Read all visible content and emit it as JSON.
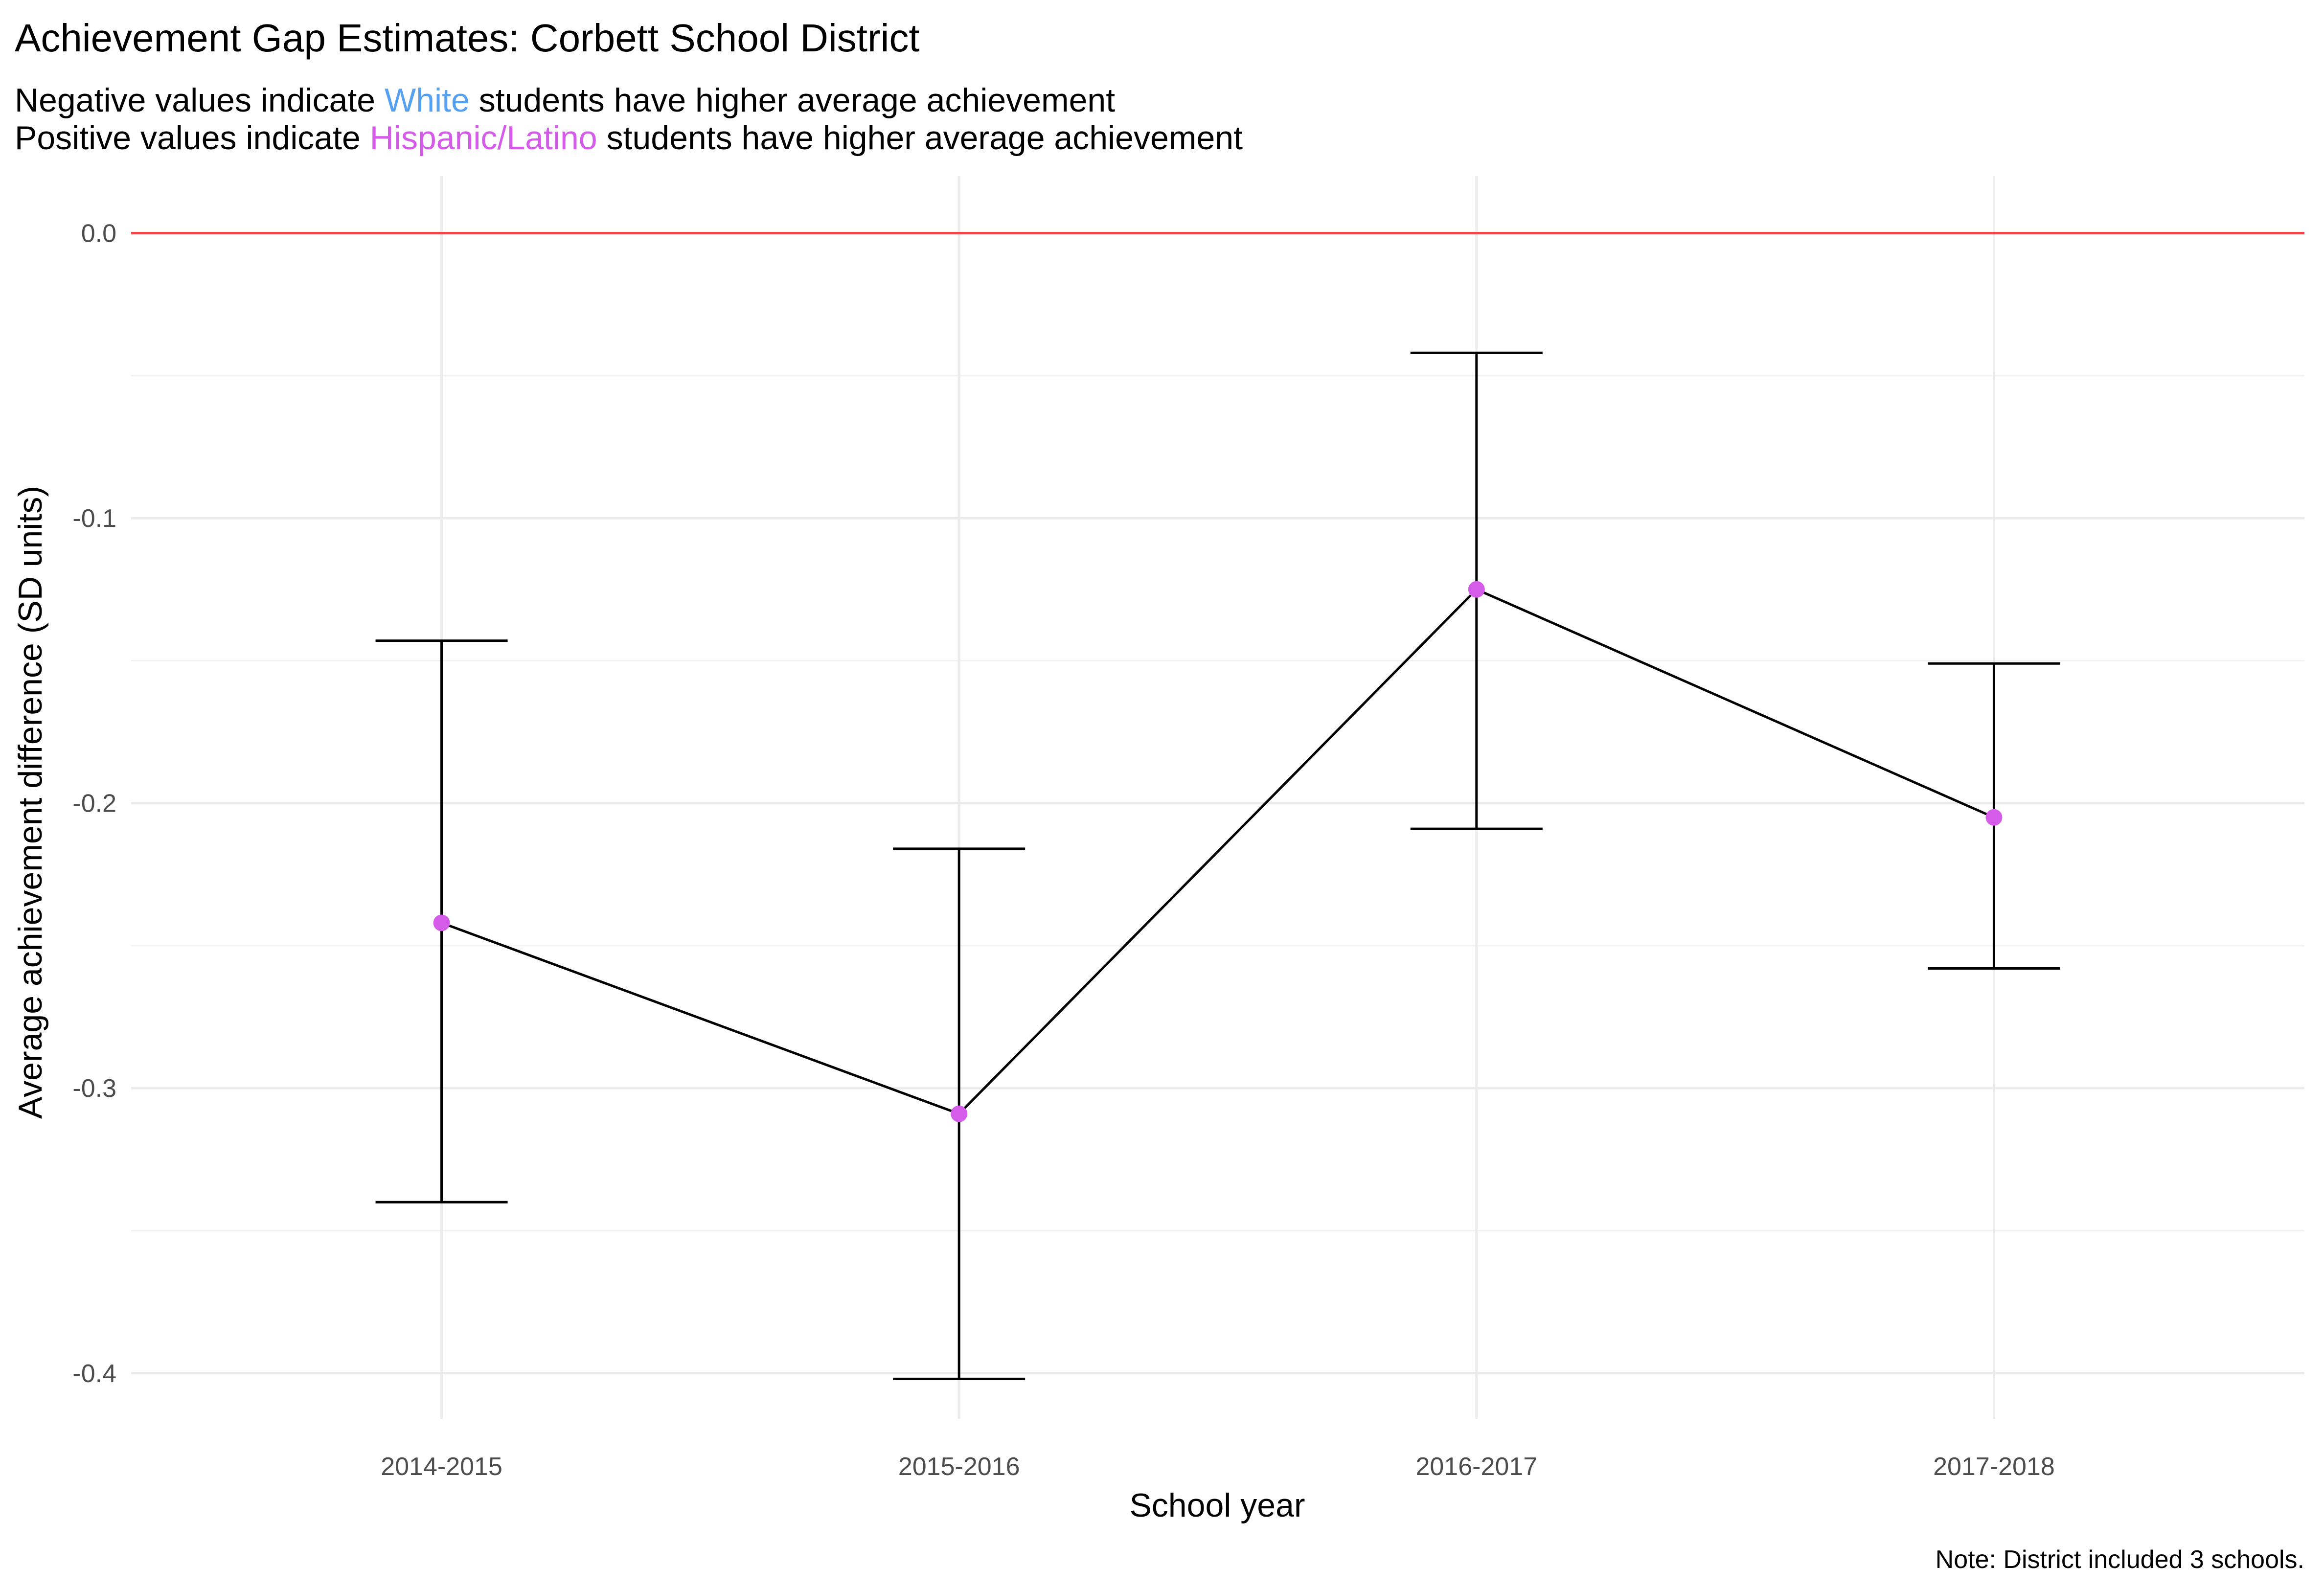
{
  "chart_data": {
    "type": "line",
    "title": "Achievement Gap Estimates: Corbett School District",
    "subtitle": {
      "line1": {
        "before": "Negative values indicate ",
        "highlight": "White",
        "after": " students have higher average achievement",
        "highlight_color": "#56a0f0"
      },
      "line2": {
        "before": "Positive values indicate ",
        "highlight": "Hispanic/Latino",
        "after": " students have higher average achievement",
        "highlight_color": "#d45ce8"
      }
    },
    "xlabel": "School year",
    "ylabel": "Average achievement difference (SD units)",
    "caption": "Note: District included 3 schools.",
    "categories": [
      "2014-2015",
      "2015-2016",
      "2016-2017",
      "2017-2018"
    ],
    "values": [
      -0.242,
      -0.309,
      -0.125,
      -0.205
    ],
    "error_lower": [
      -0.34,
      -0.402,
      -0.209,
      -0.258
    ],
    "error_upper": [
      -0.143,
      -0.216,
      -0.042,
      -0.151
    ],
    "ylim": [
      -0.416,
      0.02
    ],
    "yticks": [
      "0.0",
      "-0.1",
      "-0.2",
      "-0.3",
      "-0.4"
    ],
    "ytick_values": [
      0.0,
      -0.1,
      -0.2,
      -0.3,
      -0.4
    ],
    "reference_line": 0.0,
    "reference_line_color": "#e8474b",
    "point_color": "#d45ce8",
    "line_color": "#000000",
    "grid": true,
    "legend": "none"
  }
}
